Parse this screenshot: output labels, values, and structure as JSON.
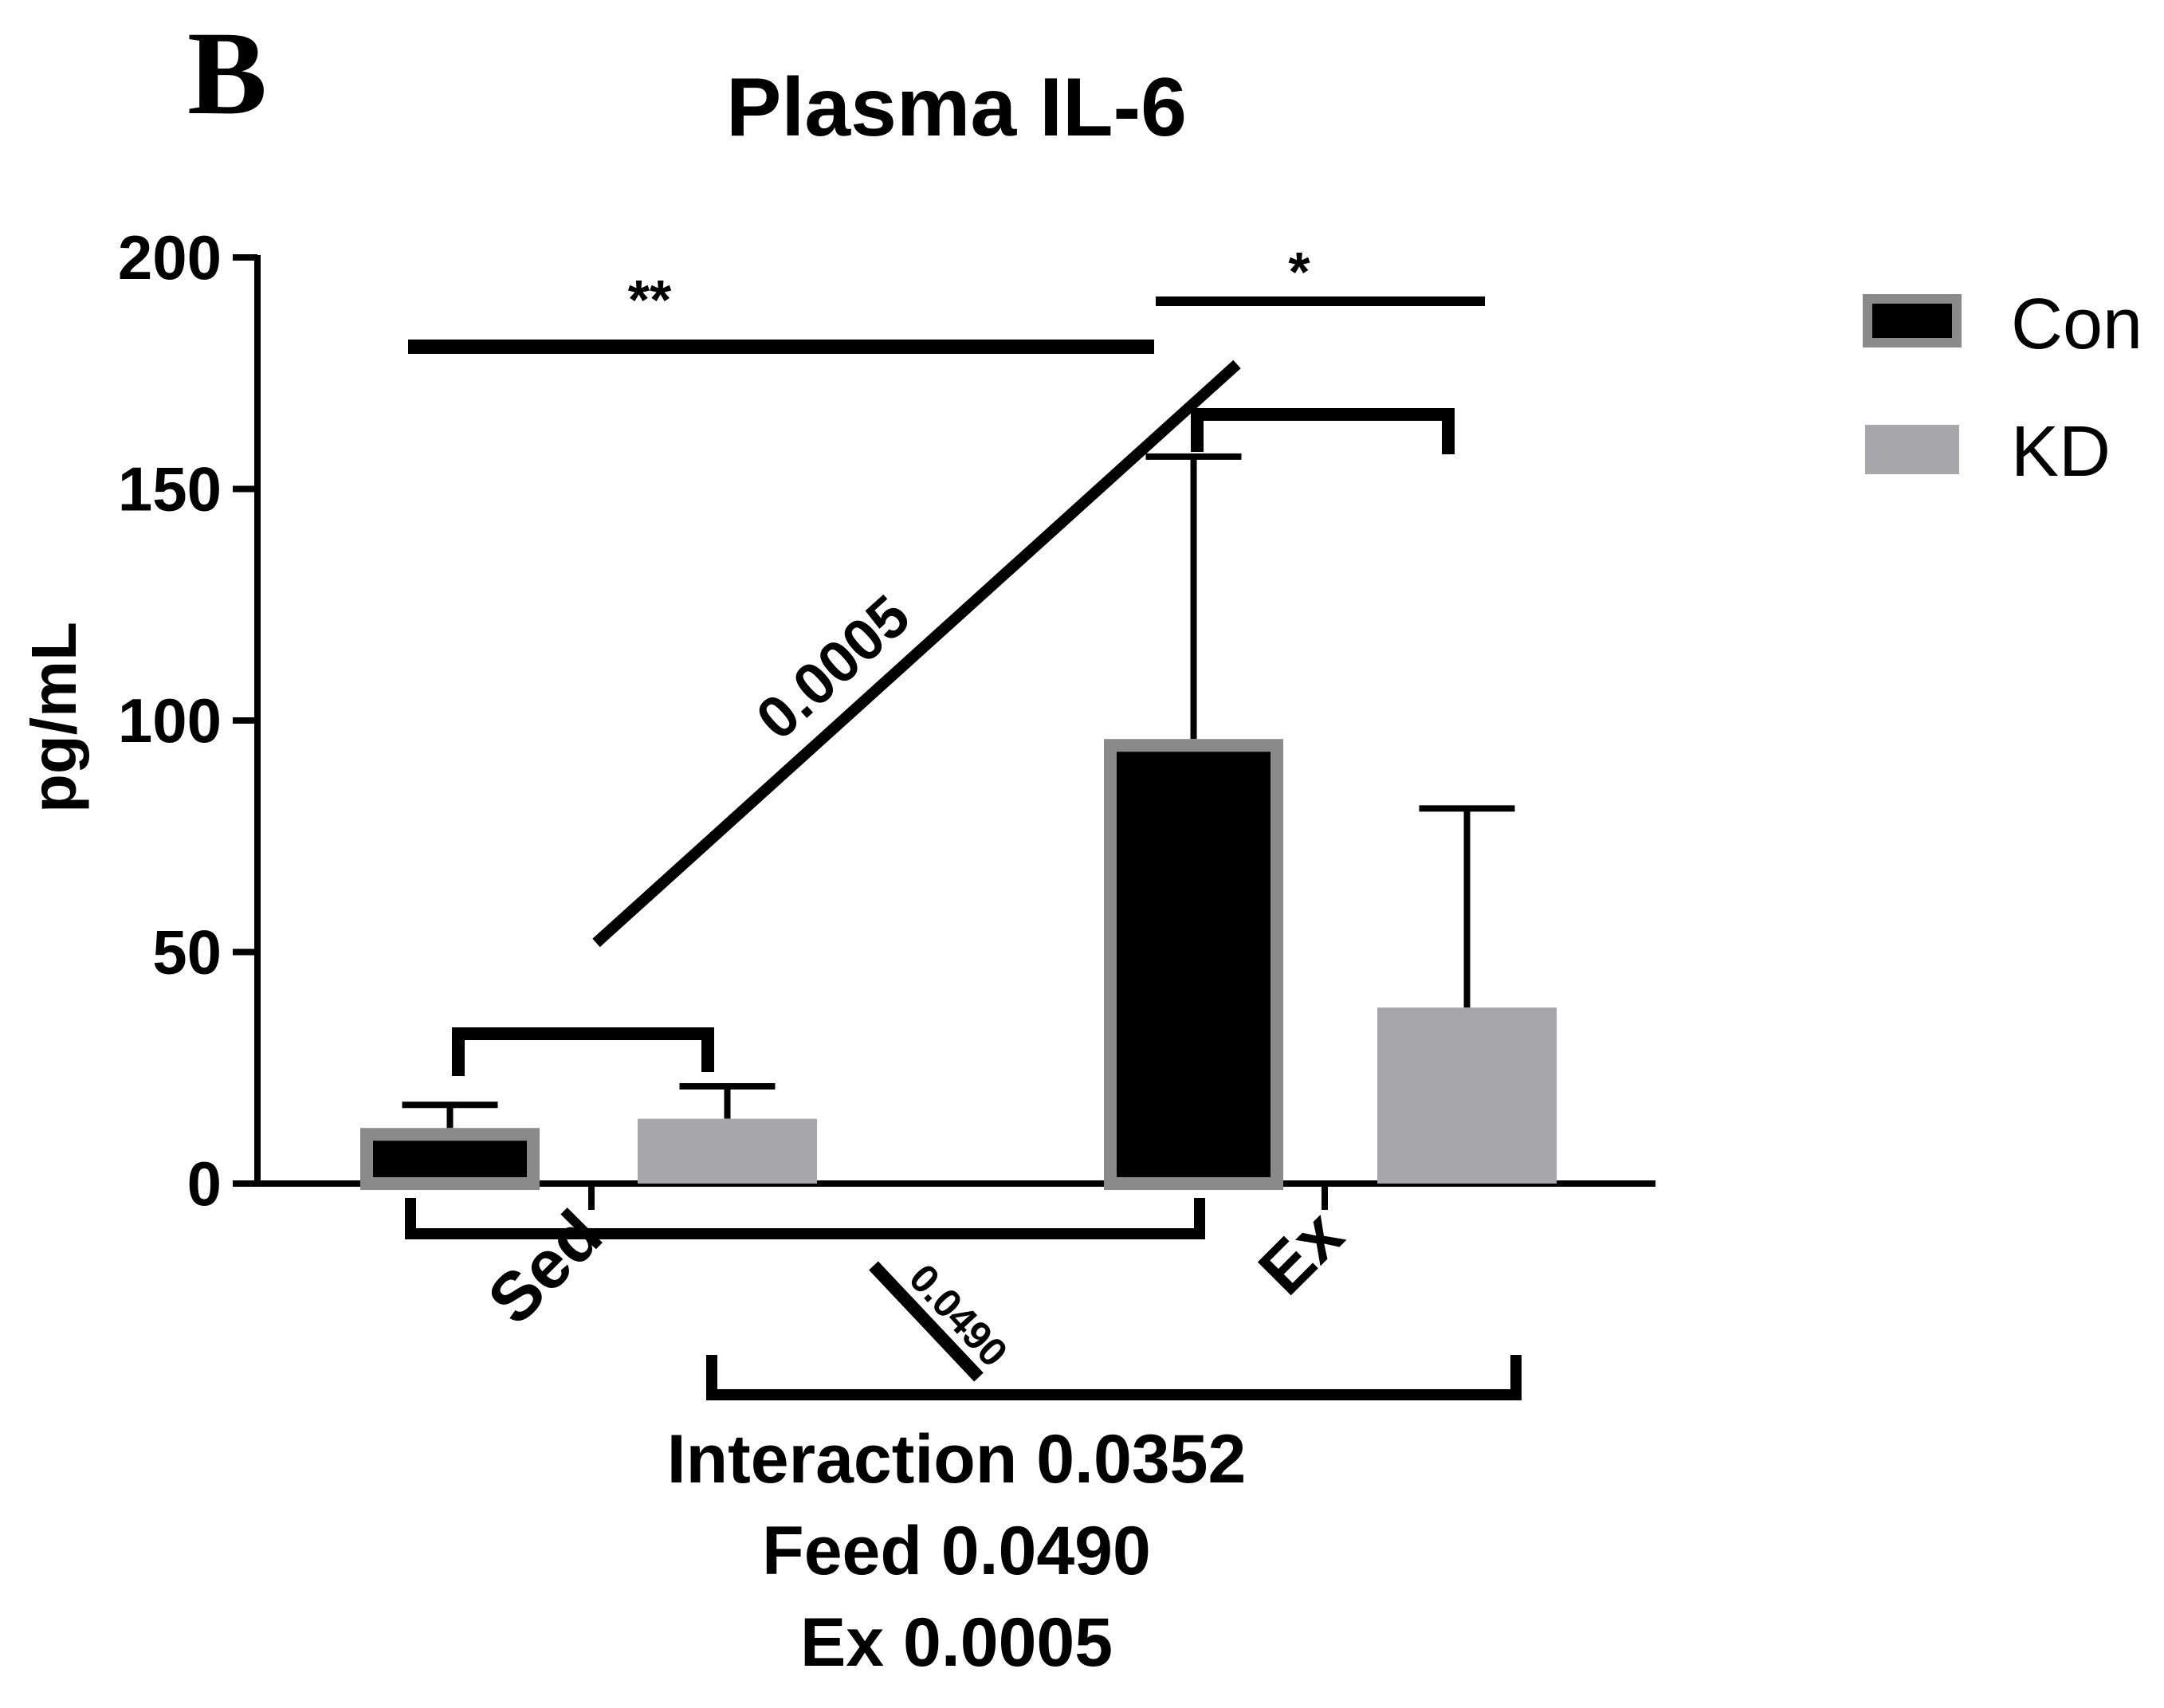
{
  "panel_label": "B",
  "chart_data": {
    "type": "bar",
    "title": "Plasma IL-6",
    "ylabel": "pg/mL",
    "xlabel": "",
    "ylim": [
      0,
      200
    ],
    "yticks": [
      0,
      50,
      100,
      150,
      200
    ],
    "categories": [
      "Sed",
      "Ex"
    ],
    "series": [
      {
        "name": "Con",
        "values": [
          12,
          96
        ],
        "errors": [
          5,
          61
        ],
        "color": "#000000",
        "border": "#8a8a8a"
      },
      {
        "name": "KD",
        "values": [
          14,
          38
        ],
        "errors": [
          7,
          43
        ],
        "color": "#a7a6ab",
        "border": "#a7a6ab"
      }
    ],
    "significance": [
      {
        "label": "**",
        "from": "Sed-Con",
        "to": "Ex-Con",
        "y": 181
      },
      {
        "label": "*",
        "from": "Ex-Con",
        "to": "Ex-KD",
        "y": 191
      }
    ],
    "annotations": {
      "diagonal_main": "0.0005",
      "diagonal_bottom": "0.0490",
      "stats": [
        "Interaction 0.0352",
        "Feed 0.0490",
        "Ex 0.0005"
      ]
    },
    "legend": {
      "position": "top-right",
      "entries": [
        "Con",
        "KD"
      ]
    }
  }
}
